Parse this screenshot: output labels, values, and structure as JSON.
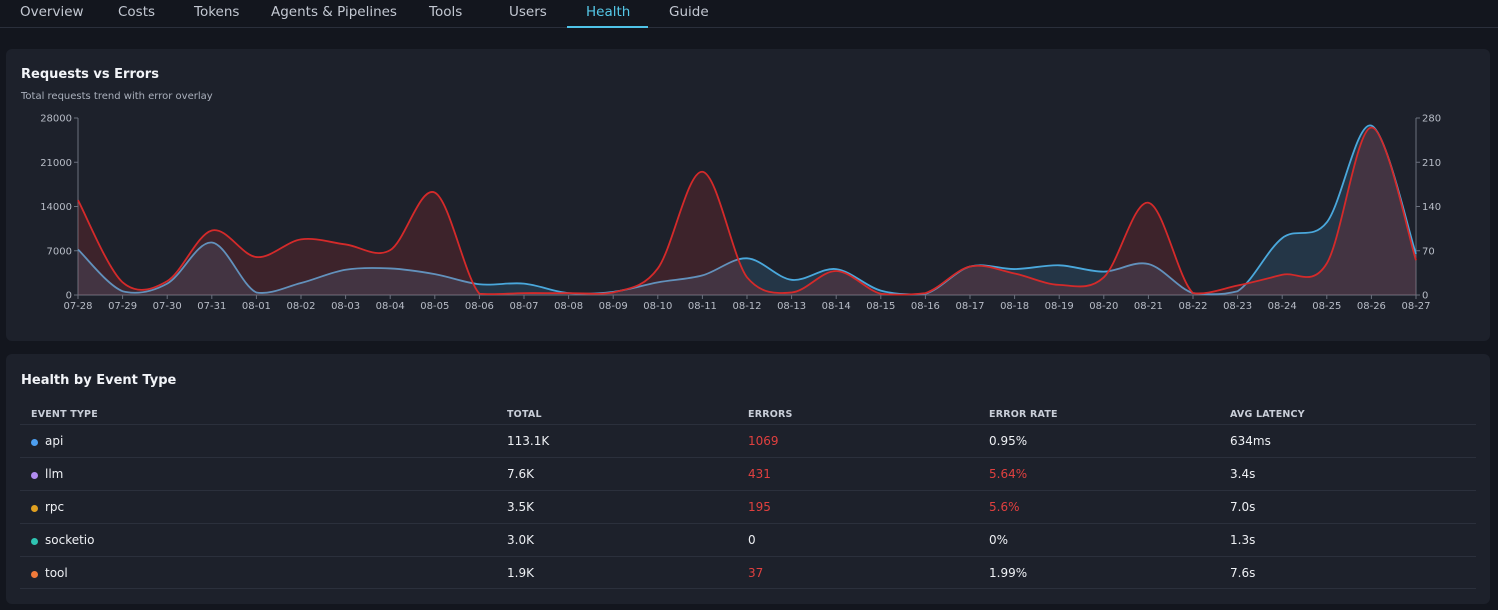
{
  "tabs": [
    {
      "label": "Overview",
      "active": false
    },
    {
      "label": "Costs",
      "active": false
    },
    {
      "label": "Tokens",
      "active": false
    },
    {
      "label": "Agents & Pipelines",
      "active": false
    },
    {
      "label": "Tools",
      "active": false
    },
    {
      "label": "Users",
      "active": false
    },
    {
      "label": "Health",
      "active": true
    },
    {
      "label": "Guide",
      "active": false
    }
  ],
  "chart_card": {
    "title": "Requests vs Errors",
    "subtitle": "Total requests trend with error overlay"
  },
  "chart_data": {
    "type": "area",
    "categories": [
      "07-28",
      "07-29",
      "07-30",
      "07-31",
      "08-01",
      "08-02",
      "08-03",
      "08-04",
      "08-05",
      "08-06",
      "08-07",
      "08-08",
      "08-09",
      "08-10",
      "08-11",
      "08-12",
      "08-13",
      "08-14",
      "08-15",
      "08-16",
      "08-17",
      "08-18",
      "08-19",
      "08-20",
      "08-21",
      "08-22",
      "08-23",
      "08-24",
      "08-25",
      "08-26",
      "08-27"
    ],
    "left_axis": {
      "ticks": [
        "0",
        "7000",
        "14000",
        "21000",
        "28000"
      ],
      "ylim": [
        0,
        28000
      ]
    },
    "right_axis": {
      "ticks": [
        "0",
        "70",
        "140",
        "210",
        "280"
      ],
      "ylim": [
        0,
        280
      ]
    },
    "series": [
      {
        "axis": "left",
        "color": "#4aa8dc",
        "values": [
          7200,
          600,
          1800,
          8300,
          400,
          1900,
          4000,
          4200,
          3300,
          1700,
          1800,
          300,
          500,
          2000,
          3100,
          5800,
          2400,
          4100,
          700,
          200,
          4500,
          4100,
          4700,
          3700,
          4900,
          300,
          600,
          9000,
          11500,
          26800,
          6500
        ]
      },
      {
        "axis": "right",
        "color": "#d42a2a",
        "values": [
          150,
          20,
          22,
          102,
          60,
          88,
          80,
          71,
          162,
          2,
          3,
          3,
          4,
          42,
          195,
          28,
          4,
          38,
          2,
          3,
          45,
          34,
          16,
          28,
          146,
          3,
          15,
          32,
          50,
          265,
          55
        ]
      }
    ],
    "grid": false,
    "legend": "none"
  },
  "table_card": {
    "title": "Health by Event Type",
    "headers": [
      "EVENT TYPE",
      "TOTAL",
      "ERRORS",
      "ERROR RATE",
      "AVG LATENCY"
    ],
    "rows": [
      {
        "name": "api",
        "dot": "#4d9ff0",
        "total": "113.1K",
        "errors": "1069",
        "errors_red": true,
        "rate": "0.95%",
        "rate_red": false,
        "latency": "634ms"
      },
      {
        "name": "llm",
        "dot": "#b18cf0",
        "total": "7.6K",
        "errors": "431",
        "errors_red": true,
        "rate": "5.64%",
        "rate_red": true,
        "latency": "3.4s"
      },
      {
        "name": "rpc",
        "dot": "#e0a020",
        "total": "3.5K",
        "errors": "195",
        "errors_red": true,
        "rate": "5.6%",
        "rate_red": true,
        "latency": "7.0s"
      },
      {
        "name": "socketio",
        "dot": "#2fc4b2",
        "total": "3.0K",
        "errors": "0",
        "errors_red": false,
        "rate": "0%",
        "rate_red": false,
        "latency": "1.3s"
      },
      {
        "name": "tool",
        "dot": "#f07a3a",
        "total": "1.9K",
        "errors": "37",
        "errors_red": true,
        "rate": "1.99%",
        "rate_red": false,
        "latency": "7.6s"
      }
    ]
  }
}
